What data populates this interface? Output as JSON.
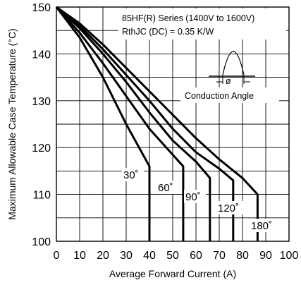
{
  "chart_data": {
    "type": "line",
    "xlabel": "Average Forward Current (A)",
    "ylabel": "Maximum Allowable Case Temperature (°C)",
    "xlim": [
      0,
      100
    ],
    "ylim": [
      100,
      150
    ],
    "x_ticks": [
      "0",
      "10",
      "20",
      "30",
      "40",
      "50",
      "60",
      "70",
      "80",
      "90",
      "100"
    ],
    "y_ticks": [
      "100",
      "110",
      "120",
      "130",
      "140",
      "150"
    ],
    "grid": true,
    "annotations": {
      "series_line": "85HF(R) Series (1400V to 1600V)",
      "rth_line": "RthJC (DC) = 0.35 K/W",
      "conduction_label": "Conduction Angle",
      "phi_symbol": "ø"
    },
    "series": [
      {
        "label": "30˚",
        "x": [
          0,
          10,
          20,
          30,
          40,
          40
        ],
        "y": [
          150,
          143.5,
          135,
          125,
          116,
          100
        ]
      },
      {
        "label": "60˚",
        "x": [
          0,
          10,
          20,
          30,
          40,
          50,
          54.5,
          54.5
        ],
        "y": [
          150,
          144.5,
          138,
          131,
          124,
          118.5,
          116,
          100
        ]
      },
      {
        "label": "90˚",
        "x": [
          0,
          10,
          20,
          30,
          40,
          50,
          60,
          66,
          66
        ],
        "y": [
          150,
          145.5,
          140,
          134,
          127.5,
          121.5,
          117,
          113.5,
          100
        ]
      },
      {
        "label": "120˚",
        "x": [
          0,
          10,
          20,
          30,
          40,
          50,
          60,
          70,
          76,
          76
        ],
        "y": [
          150,
          146,
          141,
          135.5,
          130,
          124,
          119,
          115.5,
          113,
          100
        ]
      },
      {
        "label": "180˚",
        "x": [
          0,
          10,
          20,
          30,
          40,
          50,
          60,
          70,
          80,
          86.5,
          86.5
        ],
        "y": [
          150,
          146.5,
          142,
          137,
          132,
          127,
          122,
          117.5,
          113.5,
          110,
          100
        ]
      }
    ]
  }
}
